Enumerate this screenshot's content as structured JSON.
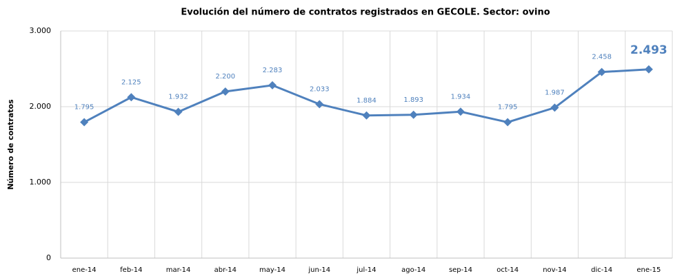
{
  "chart_data": {
    "type": "line",
    "title": "Evolución del número de contratos registrados en GECOLE.  Sector: ovino",
    "y_label": "Número de contratos",
    "categories": [
      "ene-14",
      "feb-14",
      "mar-14",
      "abr-14",
      "may-14",
      "jun-14",
      "jul-14",
      "ago-14",
      "sep-14",
      "oct-14",
      "nov-14",
      "dic-14",
      "ene-15"
    ],
    "series": [
      {
        "name": "Número de contratos",
        "color": "#4f81bd",
        "values": [
          1795,
          2125,
          1932,
          2200,
          2283,
          2033,
          1884,
          1893,
          1934,
          1795,
          1987,
          2458,
          2493
        ],
        "value_labels": [
          "1.795",
          "2.125",
          "1.932",
          "2.200",
          "2.283",
          "2.033",
          "1.884",
          "1.893",
          "1.934",
          "1.795",
          "1.987",
          "2.458",
          "2.493"
        ]
      }
    ],
    "ylim": [
      0,
      3000
    ],
    "yticks": [
      0,
      {
        "value": 1000,
        "label": "1.000"
      },
      {
        "value": 2000,
        "label": "2.000"
      },
      {
        "value": 3000,
        "label": "3.000"
      }
    ],
    "grid": true
  }
}
